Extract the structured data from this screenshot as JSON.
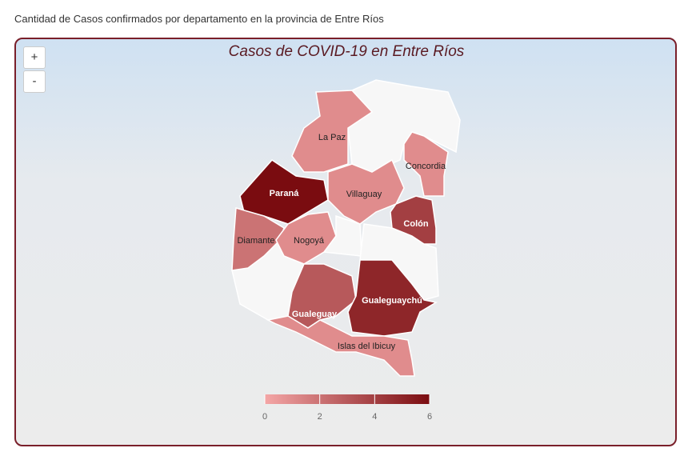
{
  "heading": "Cantidad de Casos confirmados por departamento en la provincia de Entre Ríos",
  "map": {
    "title": "Casos de COVID-19 en Entre Ríos",
    "zoom_in": "+",
    "zoom_out": "-",
    "departments": [
      {
        "name": "La Paz",
        "cases": 1
      },
      {
        "name": "Paraná",
        "cases": 6
      },
      {
        "name": "Villaguay",
        "cases": 1
      },
      {
        "name": "Concordia",
        "cases": 1
      },
      {
        "name": "Colón",
        "cases": 4
      },
      {
        "name": "Diamante",
        "cases": 2
      },
      {
        "name": "Nogoyá",
        "cases": 1
      },
      {
        "name": "Gualeguay",
        "cases": 3
      },
      {
        "name": "Gualeguaychú",
        "cases": 5
      },
      {
        "name": "Islas del Ibicuy",
        "cases": 1
      }
    ],
    "legend": {
      "lim": [
        0,
        6
      ],
      "ticks": [
        0,
        2,
        4,
        6
      ],
      "low_color": "#f4a6a6",
      "high_color": "#7a0c10"
    }
  }
}
